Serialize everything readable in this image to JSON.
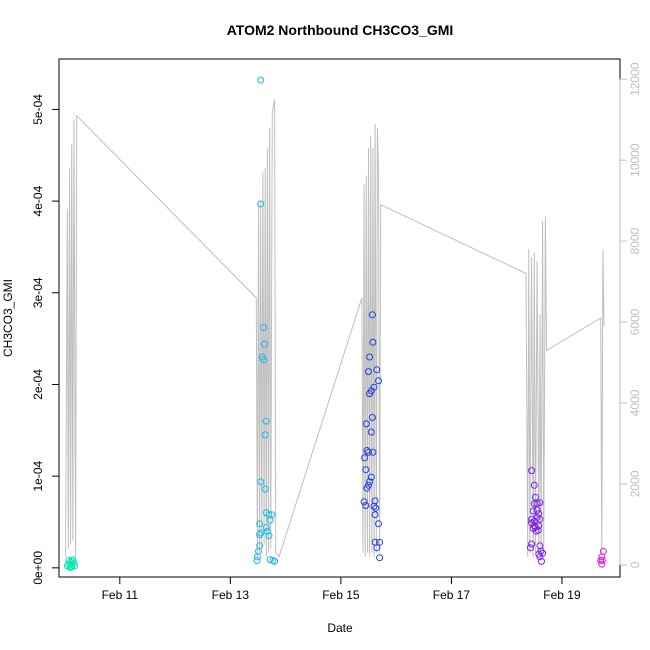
{
  "chart_data": {
    "type": "scatter",
    "title": "ATOM2 Northbound CH3CO3_GMI",
    "xlabel": "Date",
    "ylabel": "CH3CO3_GMI",
    "x_ticks": [
      "Feb 11",
      "Feb 13",
      "Feb 15",
      "Feb 17",
      "Feb 19"
    ],
    "x_tick_values": [
      11,
      13,
      15,
      17,
      19
    ],
    "xlim": [
      9.9,
      20.05
    ],
    "y_ticks": [
      "0e+00",
      "1e-04",
      "2e-04",
      "3e-04",
      "4e-04",
      "5e-04"
    ],
    "y_tick_values": [
      0,
      0.0001,
      0.0002,
      0.0003,
      0.0004,
      0.0005
    ],
    "ylim": [
      -1e-05,
      0.000555
    ],
    "y2_ticks": [
      "0",
      "2000",
      "4000",
      "6000",
      "8000",
      "10000",
      "12000"
    ],
    "y2_tick_values": [
      0,
      2000,
      4000,
      6000,
      8000,
      10000,
      12000
    ],
    "y2lim": [
      -300,
      12500
    ],
    "colors": {
      "altitude_line": "#bebebe",
      "right_axis": "#bebebe",
      "day10": "#00e5b0",
      "day13": "#19b8e6",
      "day15": "#1f3fe6",
      "day18": "#7a1fe6",
      "day19": "#e619e6"
    },
    "series": [
      {
        "color_key": "day10",
        "points": [
          [
            10.05,
            2e-06
          ],
          [
            10.07,
            4e-06
          ],
          [
            10.08,
            8e-06
          ],
          [
            10.1,
            6e-06
          ],
          [
            10.12,
            3e-06
          ],
          [
            10.13,
            1e-06
          ],
          [
            10.15,
            9e-06
          ],
          [
            10.17,
            5e-06
          ],
          [
            10.18,
            2e-06
          ],
          [
            10.1,
            5e-07
          ],
          [
            10.14,
            7e-06
          ]
        ]
      },
      {
        "color_key": "day13",
        "points": [
          [
            13.55,
            0.000532
          ],
          [
            13.55,
            0.000397
          ],
          [
            13.6,
            0.000262
          ],
          [
            13.62,
            0.000244
          ],
          [
            13.58,
            0.00023
          ],
          [
            13.6,
            0.000227
          ],
          [
            13.65,
            0.00016
          ],
          [
            13.63,
            0.000145
          ],
          [
            13.55,
            9.4e-05
          ],
          [
            13.63,
            8.6e-05
          ],
          [
            13.65,
            6e-05
          ],
          [
            13.7,
            5.8e-05
          ],
          [
            13.75,
            5.8e-05
          ],
          [
            13.72,
            5.2e-05
          ],
          [
            13.53,
            4.8e-05
          ],
          [
            13.65,
            4.4e-05
          ],
          [
            13.67,
            4e-05
          ],
          [
            13.55,
            3.8e-05
          ],
          [
            13.53,
            3.6e-05
          ],
          [
            13.7,
            3.5e-05
          ],
          [
            13.53,
            2.4e-05
          ],
          [
            13.51,
            1.8e-05
          ],
          [
            13.49,
            1.2e-05
          ],
          [
            13.48,
            8e-06
          ],
          [
            13.72,
            9e-06
          ],
          [
            13.77,
            8e-06
          ],
          [
            13.8,
            7e-06
          ]
        ]
      },
      {
        "color_key": "day15",
        "points": [
          [
            15.57,
            0.000276
          ],
          [
            15.58,
            0.000246
          ],
          [
            15.52,
            0.00023
          ],
          [
            15.65,
            0.000216
          ],
          [
            15.5,
            0.000214
          ],
          [
            15.68,
            0.000204
          ],
          [
            15.6,
            0.000197
          ],
          [
            15.55,
            0.000193
          ],
          [
            15.52,
            0.00019
          ],
          [
            15.57,
            0.000164
          ],
          [
            15.46,
            0.000157
          ],
          [
            15.55,
            0.000148
          ],
          [
            15.47,
            0.000128
          ],
          [
            15.5,
            0.000126
          ],
          [
            15.58,
            0.000126
          ],
          [
            15.43,
            0.00012
          ],
          [
            15.45,
            0.000107
          ],
          [
            15.55,
            9.9e-05
          ],
          [
            15.52,
            9.4e-05
          ],
          [
            15.5,
            9e-05
          ],
          [
            15.47,
            8.7e-05
          ],
          [
            15.62,
            7.3e-05
          ],
          [
            15.42,
            7.2e-05
          ],
          [
            15.45,
            6.8e-05
          ],
          [
            15.6,
            6.7e-05
          ],
          [
            15.63,
            6.5e-05
          ],
          [
            15.62,
            5.8e-05
          ],
          [
            15.68,
            4.8e-05
          ],
          [
            15.62,
            2.8e-05
          ],
          [
            15.7,
            2.8e-05
          ],
          [
            15.65,
            2.2e-05
          ],
          [
            15.7,
            1.1e-05
          ]
        ]
      },
      {
        "color_key": "day18",
        "points": [
          [
            18.45,
            0.000106
          ],
          [
            18.5,
            9e-05
          ],
          [
            18.52,
            7.7e-05
          ],
          [
            18.5,
            7e-05
          ],
          [
            18.55,
            7e-05
          ],
          [
            18.6,
            7.1e-05
          ],
          [
            18.48,
            6.2e-05
          ],
          [
            18.55,
            6.3e-05
          ],
          [
            18.58,
            5.9e-05
          ],
          [
            18.45,
            5.3e-05
          ],
          [
            18.5,
            5.1e-05
          ],
          [
            18.55,
            5.5e-05
          ],
          [
            18.6,
            5.3e-05
          ],
          [
            18.45,
            4.9e-05
          ],
          [
            18.5,
            4.6e-05
          ],
          [
            18.52,
            4.4e-05
          ],
          [
            18.58,
            4.6e-05
          ],
          [
            18.48,
            4.3e-05
          ],
          [
            18.53,
            4e-05
          ],
          [
            18.57,
            4.1e-05
          ],
          [
            18.45,
            2.6e-05
          ],
          [
            18.43,
            2.2e-05
          ],
          [
            18.6,
            2.4e-05
          ],
          [
            18.62,
            1.8e-05
          ],
          [
            18.58,
            1.5e-05
          ],
          [
            18.65,
            1.6e-05
          ],
          [
            18.6,
            1.2e-05
          ],
          [
            18.63,
            7e-06
          ]
        ]
      },
      {
        "color_key": "day19",
        "points": [
          [
            19.75,
            1.8e-05
          ],
          [
            19.72,
            1.2e-05
          ],
          [
            19.73,
            8e-06
          ],
          [
            19.7,
            8e-06
          ],
          [
            19.72,
            4e-06
          ]
        ]
      }
    ],
    "altitude_line": [
      [
        10.02,
        200
      ],
      [
        10.05,
        8800
      ],
      [
        10.07,
        400
      ],
      [
        10.09,
        9800
      ],
      [
        10.11,
        500
      ],
      [
        10.13,
        10400
      ],
      [
        10.15,
        600
      ],
      [
        10.17,
        11000
      ],
      [
        10.2,
        200
      ],
      [
        10.22,
        11100
      ],
      [
        13.47,
        6600
      ],
      [
        13.49,
        200
      ],
      [
        13.51,
        8900
      ],
      [
        13.53,
        300
      ],
      [
        13.55,
        9000
      ],
      [
        13.57,
        400
      ],
      [
        13.59,
        9700
      ],
      [
        13.61,
        500
      ],
      [
        13.63,
        9800
      ],
      [
        13.65,
        200
      ],
      [
        13.67,
        10300
      ],
      [
        13.69,
        300
      ],
      [
        13.71,
        10800
      ],
      [
        13.73,
        400
      ],
      [
        13.76,
        11200
      ],
      [
        13.8,
        11500
      ],
      [
        13.82,
        300
      ],
      [
        13.88,
        200
      ],
      [
        15.38,
        6600
      ],
      [
        15.4,
        300
      ],
      [
        15.42,
        9400
      ],
      [
        15.44,
        200
      ],
      [
        15.46,
        9600
      ],
      [
        15.48,
        300
      ],
      [
        15.5,
        10300
      ],
      [
        15.52,
        200
      ],
      [
        15.54,
        10600
      ],
      [
        15.56,
        300
      ],
      [
        15.58,
        10300
      ],
      [
        15.6,
        200
      ],
      [
        15.62,
        10900
      ],
      [
        15.64,
        300
      ],
      [
        15.66,
        10800
      ],
      [
        15.68,
        9700
      ],
      [
        15.7,
        300
      ],
      [
        15.72,
        8900
      ],
      [
        18.35,
        7200
      ],
      [
        18.38,
        200
      ],
      [
        18.4,
        7800
      ],
      [
        18.42,
        300
      ],
      [
        18.45,
        7600
      ],
      [
        18.48,
        200
      ],
      [
        18.5,
        7700
      ],
      [
        18.52,
        300
      ],
      [
        18.55,
        7500
      ],
      [
        18.58,
        300
      ],
      [
        18.6,
        6200
      ],
      [
        18.62,
        200
      ],
      [
        18.65,
        8500
      ],
      [
        18.67,
        300
      ],
      [
        18.7,
        8600
      ],
      [
        18.72,
        5300
      ],
      [
        19.7,
        6100
      ],
      [
        19.72,
        200
      ],
      [
        19.74,
        7800
      ],
      [
        19.76,
        5900
      ]
    ]
  }
}
